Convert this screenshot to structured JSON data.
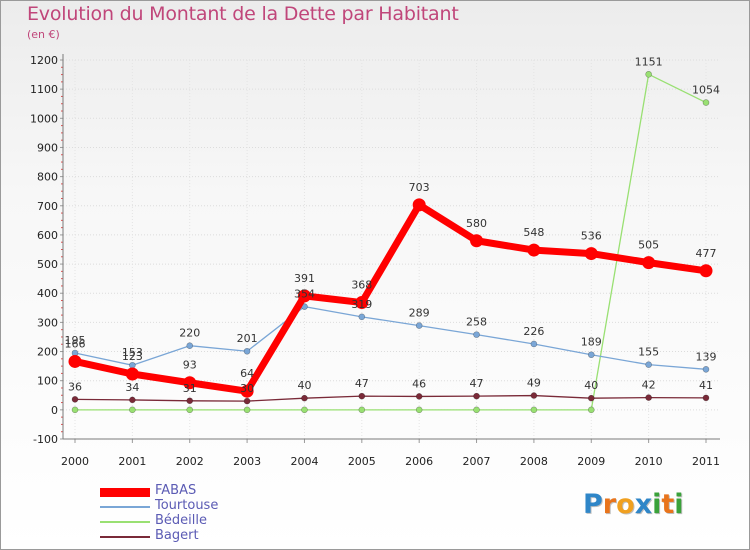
{
  "header": {
    "title": "Evolution du Montant de la Dette par Habitant",
    "subtitle": "(en €)"
  },
  "logo": {
    "letters": [
      "P",
      "r",
      "o",
      "x",
      "i",
      "t",
      "i"
    ],
    "colors": [
      "#2f86c8",
      "#e8741c",
      "#f0a020",
      "#2f86c8",
      "#3aa23a",
      "#e8741c",
      "#3aa23a"
    ]
  },
  "chart_data": {
    "type": "line",
    "title": "Evolution du Montant de la Dette par Habitant",
    "subtitle": "(en €)",
    "xlabel": "",
    "ylabel": "",
    "x": [
      "2000",
      "2001",
      "2002",
      "2003",
      "2004",
      "2005",
      "2006",
      "2007",
      "2008",
      "2009",
      "2010",
      "2011"
    ],
    "ylim": [
      -100,
      1200
    ],
    "yticks": [
      -100,
      0,
      100,
      200,
      300,
      400,
      500,
      600,
      700,
      800,
      900,
      1000,
      1100,
      1200
    ],
    "grid": "horizontal",
    "legend_position": "bottom-left",
    "series": [
      {
        "name": "FABAS",
        "color": "#ff0000",
        "values": [
          166,
          123,
          93,
          64,
          391,
          368,
          703,
          580,
          548,
          536,
          505,
          477
        ],
        "labels": [
          "166",
          "123",
          "93",
          "64",
          "391",
          "368",
          "703",
          "580",
          "548",
          "536",
          "505",
          "477"
        ]
      },
      {
        "name": "Tourtouse",
        "color": "#7aa6d6",
        "values": [
          195,
          153,
          220,
          201,
          354,
          319,
          289,
          258,
          226,
          189,
          155,
          139
        ],
        "labels": [
          "195",
          "153",
          "220",
          "201",
          "354",
          "319",
          "289",
          "258",
          "226",
          "189",
          "155",
          "139"
        ]
      },
      {
        "name": "Bédeille",
        "color": "#99e072",
        "values": [
          0,
          0,
          0,
          0,
          0,
          0,
          0,
          0,
          0,
          0,
          1151,
          1054
        ],
        "labels": [
          "",
          "",
          "",
          "",
          "",
          "",
          "",
          "",
          "",
          "",
          "1151",
          "1054"
        ]
      },
      {
        "name": "Bagert",
        "color": "#7a2a38",
        "values": [
          36,
          34,
          31,
          30,
          40,
          47,
          46,
          47,
          49,
          40,
          42,
          41
        ],
        "labels": [
          "36",
          "34",
          "31",
          "30",
          "40",
          "47",
          "46",
          "47",
          "49",
          "40",
          "42",
          "41"
        ]
      }
    ]
  }
}
